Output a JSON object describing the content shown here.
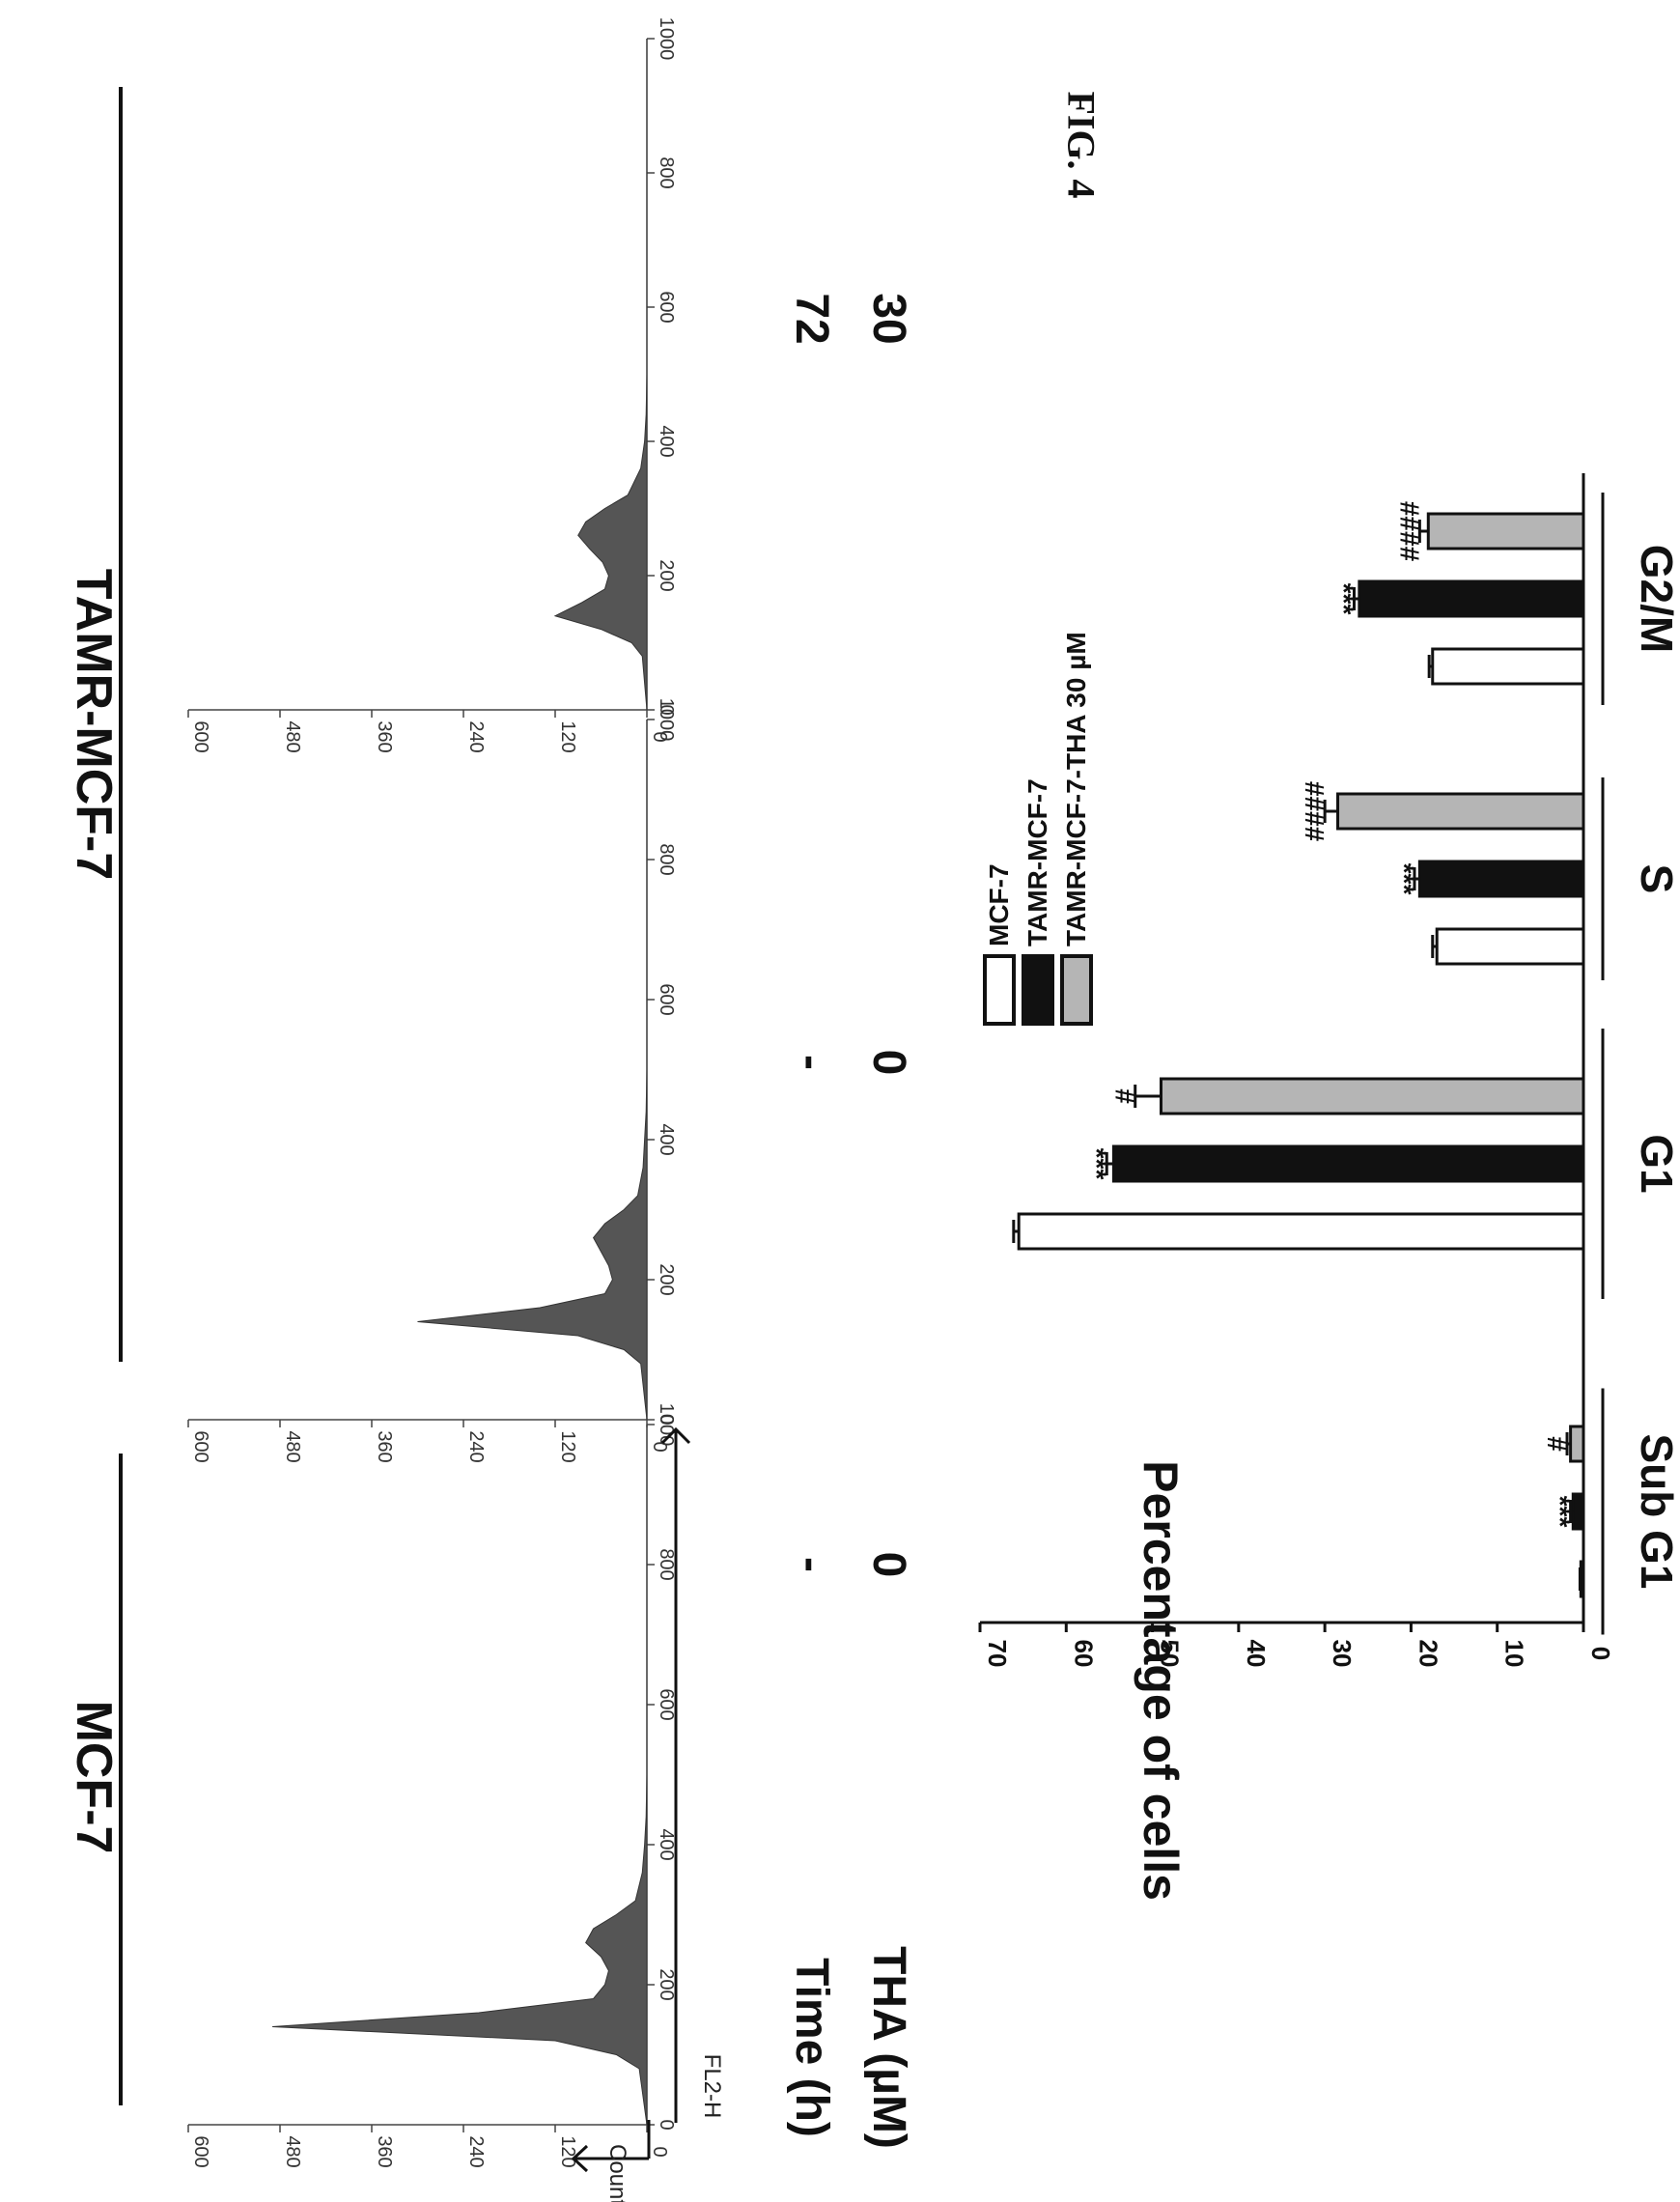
{
  "figure_title": "FIG. 4",
  "groups": {
    "mcf7": "MCF-7",
    "tamr": "TAMR-MCF-7"
  },
  "conditions": {
    "time_label": "Time (h)",
    "tha_label": "THA (µM)",
    "panels": [
      {
        "time": "-",
        "tha": "0"
      },
      {
        "time": "-",
        "tha": "0"
      },
      {
        "time": "72",
        "tha": "30"
      }
    ]
  },
  "histogram_axes": {
    "counts_label": "Counts",
    "fl2h_label": "FL2-H",
    "counts_ticks": [
      "0",
      "120",
      "240",
      "360",
      "480",
      "600"
    ],
    "fl2h_ticks": [
      "0",
      "200",
      "400",
      "600",
      "800",
      "1000"
    ]
  },
  "chart_data": [
    {
      "type": "area",
      "panel": "MCF-7 control",
      "xlim": [
        0,
        1000
      ],
      "ylim": [
        0,
        600
      ],
      "x": [
        0,
        80,
        100,
        120,
        140,
        160,
        180,
        200,
        220,
        240,
        260,
        280,
        300,
        320,
        360,
        400,
        440,
        500,
        1000
      ],
      "y": [
        0,
        10,
        40,
        120,
        490,
        220,
        70,
        55,
        50,
        60,
        80,
        70,
        40,
        15,
        6,
        3,
        1,
        0,
        0
      ]
    },
    {
      "type": "area",
      "panel": "TAMR-MCF-7 control",
      "xlim": [
        0,
        1000
      ],
      "ylim": [
        0,
        600
      ],
      "x": [
        0,
        80,
        100,
        120,
        140,
        160,
        180,
        200,
        220,
        240,
        260,
        280,
        300,
        320,
        360,
        400,
        440,
        500,
        1000
      ],
      "y": [
        0,
        8,
        30,
        90,
        300,
        140,
        55,
        45,
        50,
        60,
        70,
        55,
        30,
        12,
        5,
        3,
        1,
        0,
        0
      ]
    },
    {
      "type": "area",
      "panel": "TAMR-MCF-7 THA 72 h",
      "xlim": [
        0,
        1000
      ],
      "ylim": [
        0,
        600
      ],
      "x": [
        0,
        80,
        100,
        120,
        140,
        160,
        180,
        200,
        220,
        240,
        260,
        280,
        300,
        320,
        360,
        400,
        440,
        500,
        1000
      ],
      "y": [
        0,
        6,
        20,
        60,
        120,
        85,
        55,
        50,
        58,
        75,
        90,
        80,
        55,
        25,
        8,
        3,
        1,
        0,
        0
      ]
    },
    {
      "type": "bar",
      "categories": [
        "Sub G1",
        "G1",
        "S",
        "G2/M"
      ],
      "ylabel": "Percentage of cells",
      "ylim": [
        0,
        70
      ],
      "yticks": [
        "0",
        "10",
        "20",
        "30",
        "40",
        "50",
        "60",
        "70"
      ],
      "series": [
        {
          "name": "MCF-7",
          "values": [
            0.3,
            65.5,
            17,
            17.5
          ],
          "errors": [
            0.1,
            0.6,
            0.5,
            0.4
          ],
          "fill": "#ffffff"
        },
        {
          "name": "TAMR-MCF-7",
          "values": [
            1.2,
            54.5,
            19,
            26
          ],
          "errors": [
            0.3,
            0.8,
            0.6,
            0.6
          ],
          "fill": "#111111"
        },
        {
          "name": "TAMR-MCF-7-THA 30 µM",
          "values": [
            1.5,
            49,
            28.5,
            18
          ],
          "errors": [
            0.4,
            3,
            1.5,
            1
          ],
          "fill": "#b5b5b5"
        }
      ],
      "significance": [
        [
          "",
          "***",
          "#"
        ],
        [
          "",
          "***",
          "#"
        ],
        [
          "",
          "***",
          "####"
        ],
        [
          "",
          "***",
          "####"
        ]
      ]
    }
  ]
}
